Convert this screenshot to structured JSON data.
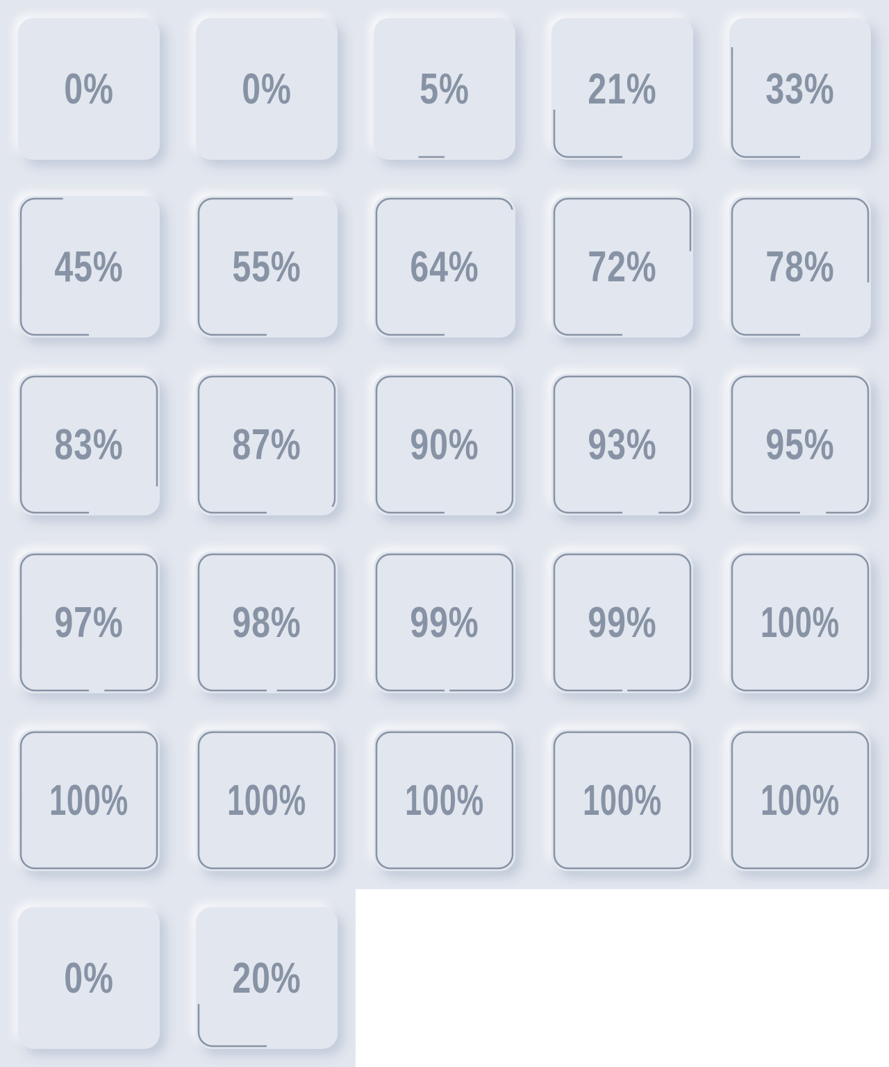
{
  "theme": {
    "background": "#e2e6ee",
    "text_color": "#8793a5",
    "stroke_color": "#8793a5"
  },
  "indicators": [
    {
      "label": "0%",
      "value": 0
    },
    {
      "label": "0%",
      "value": 0
    },
    {
      "label": "5%",
      "value": 5
    },
    {
      "label": "21%",
      "value": 21
    },
    {
      "label": "33%",
      "value": 33
    },
    {
      "label": "45%",
      "value": 45
    },
    {
      "label": "55%",
      "value": 55
    },
    {
      "label": "64%",
      "value": 64
    },
    {
      "label": "72%",
      "value": 72
    },
    {
      "label": "78%",
      "value": 78
    },
    {
      "label": "83%",
      "value": 83
    },
    {
      "label": "87%",
      "value": 87
    },
    {
      "label": "90%",
      "value": 90
    },
    {
      "label": "93%",
      "value": 93
    },
    {
      "label": "95%",
      "value": 95
    },
    {
      "label": "97%",
      "value": 97
    },
    {
      "label": "98%",
      "value": 98
    },
    {
      "label": "99%",
      "value": 99
    },
    {
      "label": "99%",
      "value": 99
    },
    {
      "label": "100%",
      "value": 100
    },
    {
      "label": "100%",
      "value": 100
    },
    {
      "label": "100%",
      "value": 100
    },
    {
      "label": "100%",
      "value": 100
    },
    {
      "label": "100%",
      "value": 100
    },
    {
      "label": "100%",
      "value": 100
    },
    {
      "label": "0%",
      "value": 0
    },
    {
      "label": "20%",
      "value": 20
    }
  ]
}
